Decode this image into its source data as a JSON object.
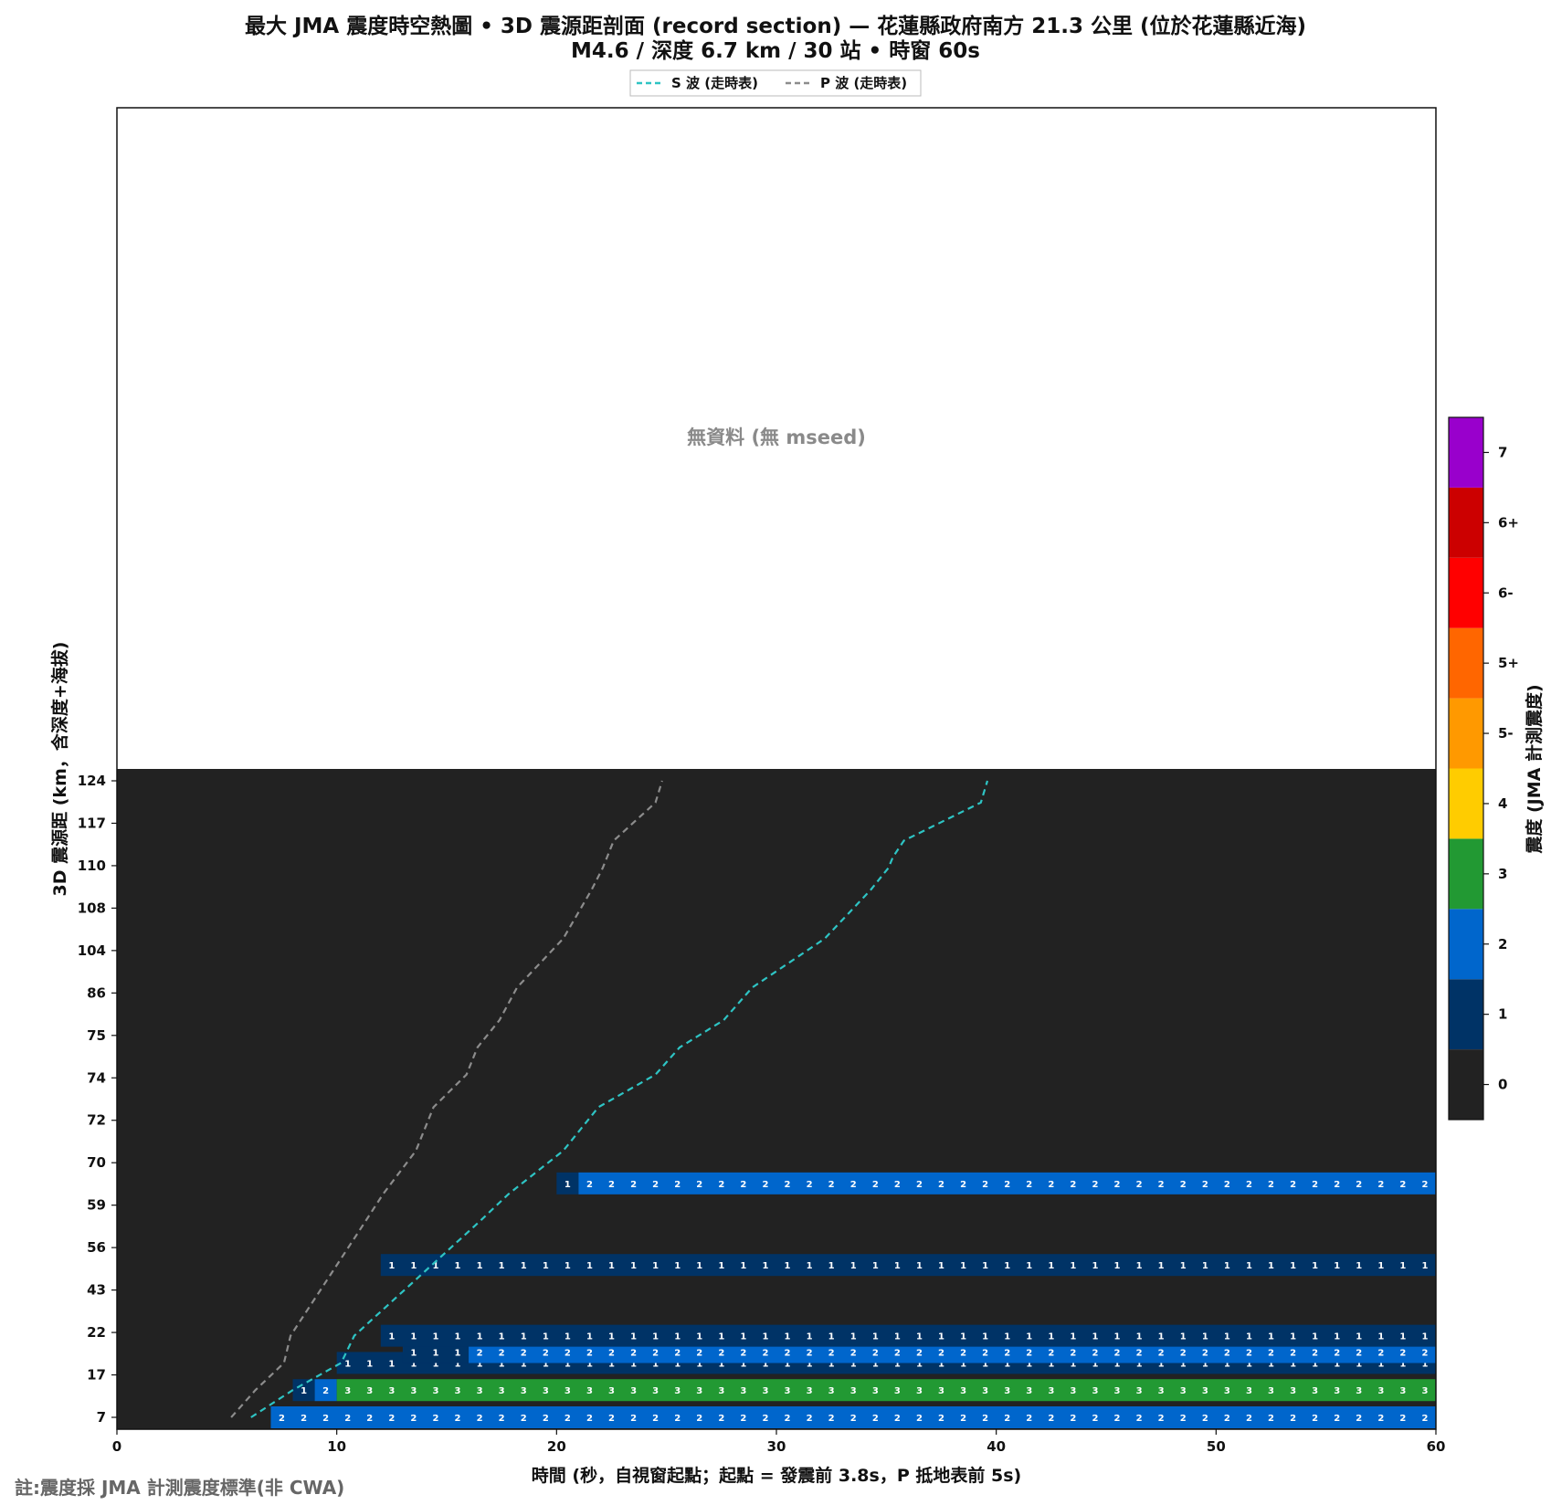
{
  "chart_data": {
    "type": "heatmap",
    "title_line1": "最大 JMA 震度時空熱圖 • 3D 震源距剖面 (record section) — 花蓮縣政府南方 21.3 公里 (位於花蓮縣近海)",
    "title_line2": "M4.6 / 深度 6.7 km / 30 站 • 時窗 60s",
    "xlabel": "時間 (秒，自視窗起點；起點 = 發震前 3.8s，P 抵地表前 5s)",
    "ylabel": "3D 震源距 (km，含深度+海拔)",
    "colorbar_label": "震度 (JMA 計測震度)",
    "no_data_text": "無資料 (無 mseed)",
    "note": "註:震度採 JMA 計測震度標準(非 CWA)",
    "xlim": [
      0,
      60
    ],
    "x_ticks": [
      0,
      10,
      20,
      30,
      40,
      50,
      60
    ],
    "y_tick_labels": [
      "7",
      "17",
      "22",
      "43",
      "56",
      "59",
      "70",
      "72",
      "74",
      "75",
      "86",
      "104",
      "108",
      "110",
      "117",
      "124"
    ],
    "legend": [
      {
        "name": "S 波 (走時表)",
        "color": "#2ec4c4"
      },
      {
        "name": "P 波 (走時表)",
        "color": "#8c8c8c"
      }
    ],
    "colorbar": {
      "levels": [
        "0",
        "1",
        "2",
        "3",
        "4",
        "5-",
        "5+",
        "6-",
        "6+",
        "7"
      ],
      "colors": [
        "#222222",
        "#003366",
        "#0066cc",
        "#229933",
        "#ffcc00",
        "#ff9900",
        "#ff6600",
        "#ff0000",
        "#cc0000",
        "#9900cc"
      ]
    },
    "rows": [
      {
        "dist": 7,
        "segments": [
          [
            0,
            7,
            0
          ],
          [
            7,
            60,
            2
          ]
        ]
      },
      {
        "dist": 12,
        "segments": [
          [
            0,
            8,
            0
          ],
          [
            8,
            9,
            1
          ],
          [
            9,
            10,
            2
          ],
          [
            10,
            60,
            3
          ]
        ]
      },
      {
        "dist": 17,
        "segments": [
          [
            0,
            10,
            0
          ],
          [
            10,
            60,
            1
          ]
        ]
      },
      {
        "dist": 19,
        "segments": [
          [
            0,
            13,
            0
          ],
          [
            13,
            16,
            1
          ],
          [
            16,
            60,
            2
          ]
        ]
      },
      {
        "dist": 22,
        "segments": [
          [
            0,
            12,
            0
          ],
          [
            12,
            60,
            1
          ]
        ]
      },
      {
        "dist": 35,
        "segments": [
          [
            0,
            12,
            0
          ],
          [
            12,
            60,
            1
          ]
        ]
      },
      {
        "dist": 50,
        "segments": [
          [
            0,
            20,
            0
          ],
          [
            20,
            21,
            1
          ],
          [
            21,
            60,
            2
          ]
        ]
      }
    ],
    "s_wave": [
      [
        6.1,
        7
      ],
      [
        8.0,
        12
      ],
      [
        10.2,
        17
      ],
      [
        10.8,
        22
      ],
      [
        16.5,
        43
      ],
      [
        17.8,
        48
      ],
      [
        20.3,
        56
      ],
      [
        21.9,
        64
      ],
      [
        24.5,
        70
      ],
      [
        25.6,
        75
      ],
      [
        27.6,
        80
      ],
      [
        28.9,
        86
      ],
      [
        32.2,
        95
      ],
      [
        34.3,
        104
      ],
      [
        35.1,
        108
      ],
      [
        35.3,
        110
      ],
      [
        35.8,
        113
      ],
      [
        39.3,
        120
      ],
      [
        39.6,
        124
      ]
    ],
    "p_wave": [
      [
        5.2,
        7
      ],
      [
        6.3,
        12
      ],
      [
        7.6,
        17
      ],
      [
        7.9,
        22
      ],
      [
        11.3,
        43
      ],
      [
        12.1,
        48
      ],
      [
        13.6,
        56
      ],
      [
        14.4,
        64
      ],
      [
        15.9,
        70
      ],
      [
        16.4,
        75
      ],
      [
        17.4,
        80
      ],
      [
        18.2,
        86
      ],
      [
        20.3,
        95
      ],
      [
        21.6,
        104
      ],
      [
        22.1,
        108
      ],
      [
        22.3,
        110
      ],
      [
        22.6,
        113
      ],
      [
        24.5,
        120
      ],
      [
        24.8,
        124
      ]
    ]
  }
}
